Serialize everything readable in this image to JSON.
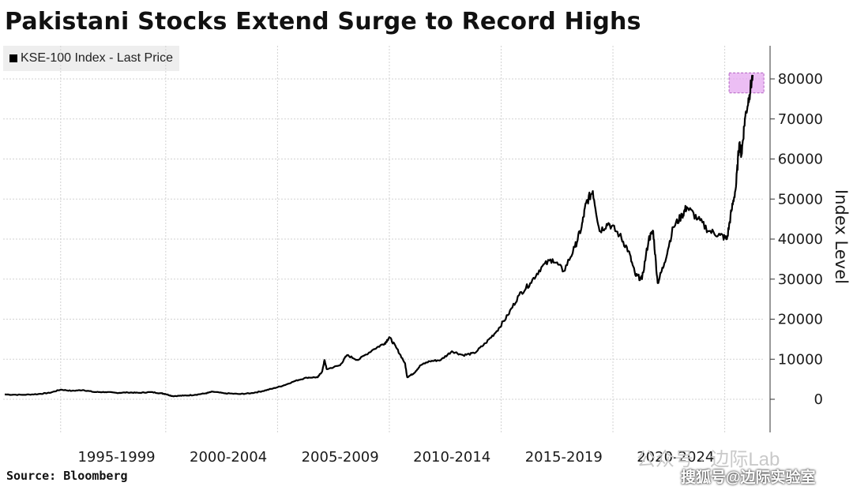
{
  "header": {
    "title": "Pakistani Stocks Extend Surge to Record Highs"
  },
  "footer": {
    "source": "Source: Bloomberg"
  },
  "watermarks": {
    "line1": "公众号 · 边际Lab",
    "line2": "搜狐号@边际实验室"
  },
  "chart_data": {
    "type": "line",
    "title": "Pakistani Stocks Extend Surge to Record Highs",
    "xlabel": "",
    "ylabel": "Index Level",
    "ylim": [
      0,
      80000
    ],
    "xlim": [
      1991.0,
      2024.0
    ],
    "y_axis_position": "right",
    "y_ticks": [
      0,
      10000,
      20000,
      30000,
      40000,
      50000,
      60000,
      70000,
      80000
    ],
    "y_tick_labels": [
      "0",
      "10000",
      "20000",
      "30000",
      "40000",
      "50000",
      "60000",
      "70000",
      "80000"
    ],
    "x_tick_labels": [
      "1995-1999",
      "2000-2004",
      "2005-2009",
      "2010-2014",
      "2015-2019",
      "2020-2024"
    ],
    "x_tick_label_centers": [
      1996.0,
      2001.0,
      2006.0,
      2011.0,
      2016.0,
      2021.0
    ],
    "x_gridlines": [
      1993.5,
      1998.2,
      2003.2,
      2008.2,
      2013.2,
      2018.2,
      2023.2
    ],
    "grid": true,
    "legend_placement": "top-left",
    "highlight_color": "#e6a8f0",
    "series": [
      {
        "name": "KSE-100 Index - Last Price",
        "color": "#000000",
        "points": [
          [
            1991.0,
            1200
          ],
          [
            1991.8,
            1100
          ],
          [
            1992.5,
            1300
          ],
          [
            1993.0,
            1600
          ],
          [
            1993.5,
            2400
          ],
          [
            1994.0,
            2100
          ],
          [
            1994.5,
            2300
          ],
          [
            1995.0,
            1800
          ],
          [
            1995.5,
            1800
          ],
          [
            1996.0,
            1600
          ],
          [
            1996.5,
            1700
          ],
          [
            1997.0,
            1600
          ],
          [
            1997.5,
            1800
          ],
          [
            1998.0,
            1500
          ],
          [
            1998.2,
            1300
          ],
          [
            1998.5,
            800
          ],
          [
            1999.0,
            900
          ],
          [
            1999.5,
            1100
          ],
          [
            2000.0,
            1500
          ],
          [
            2000.3,
            1900
          ],
          [
            2000.8,
            1500
          ],
          [
            2001.5,
            1300
          ],
          [
            2002.0,
            1500
          ],
          [
            2002.5,
            2000
          ],
          [
            2003.0,
            2700
          ],
          [
            2003.5,
            3500
          ],
          [
            2004.0,
            4600
          ],
          [
            2004.5,
            5400
          ],
          [
            2005.0,
            5500
          ],
          [
            2005.2,
            7000
          ],
          [
            2005.3,
            9800
          ],
          [
            2005.4,
            7500
          ],
          [
            2006.0,
            8500
          ],
          [
            2006.3,
            11000
          ],
          [
            2006.8,
            9800
          ],
          [
            2007.5,
            12500
          ],
          [
            2008.0,
            14000
          ],
          [
            2008.2,
            15500
          ],
          [
            2008.5,
            13000
          ],
          [
            2008.9,
            9000
          ],
          [
            2009.0,
            5500
          ],
          [
            2009.3,
            6500
          ],
          [
            2009.6,
            8500
          ],
          [
            2010.0,
            9500
          ],
          [
            2010.5,
            9800
          ],
          [
            2011.0,
            12000
          ],
          [
            2011.5,
            11000
          ],
          [
            2012.0,
            11500
          ],
          [
            2012.5,
            14000
          ],
          [
            2013.0,
            17000
          ],
          [
            2013.5,
            21000
          ],
          [
            2014.0,
            26000
          ],
          [
            2014.5,
            29000
          ],
          [
            2015.0,
            33000
          ],
          [
            2015.5,
            35000
          ],
          [
            2016.0,
            32000
          ],
          [
            2016.5,
            38000
          ],
          [
            2016.8,
            43000
          ],
          [
            2017.0,
            49000
          ],
          [
            2017.3,
            52000
          ],
          [
            2017.6,
            42000
          ],
          [
            2018.0,
            44000
          ],
          [
            2018.5,
            41000
          ],
          [
            2018.9,
            37000
          ],
          [
            2019.2,
            31000
          ],
          [
            2019.5,
            30000
          ],
          [
            2019.8,
            40000
          ],
          [
            2020.0,
            42000
          ],
          [
            2020.2,
            29000
          ],
          [
            2020.5,
            34000
          ],
          [
            2020.9,
            43000
          ],
          [
            2021.3,
            46000
          ],
          [
            2021.5,
            48000
          ],
          [
            2022.0,
            45000
          ],
          [
            2022.5,
            42000
          ],
          [
            2023.0,
            41000
          ],
          [
            2023.3,
            40000
          ],
          [
            2023.5,
            47000
          ],
          [
            2023.7,
            53000
          ],
          [
            2023.85,
            64000
          ],
          [
            2023.95,
            61000
          ],
          [
            2024.1,
            70000
          ],
          [
            2024.3,
            76000
          ],
          [
            2024.45,
            81000
          ]
        ]
      }
    ],
    "highlight": {
      "x_range": [
        2024.1,
        2024.95
      ],
      "y_range": [
        76500,
        81500
      ]
    }
  }
}
